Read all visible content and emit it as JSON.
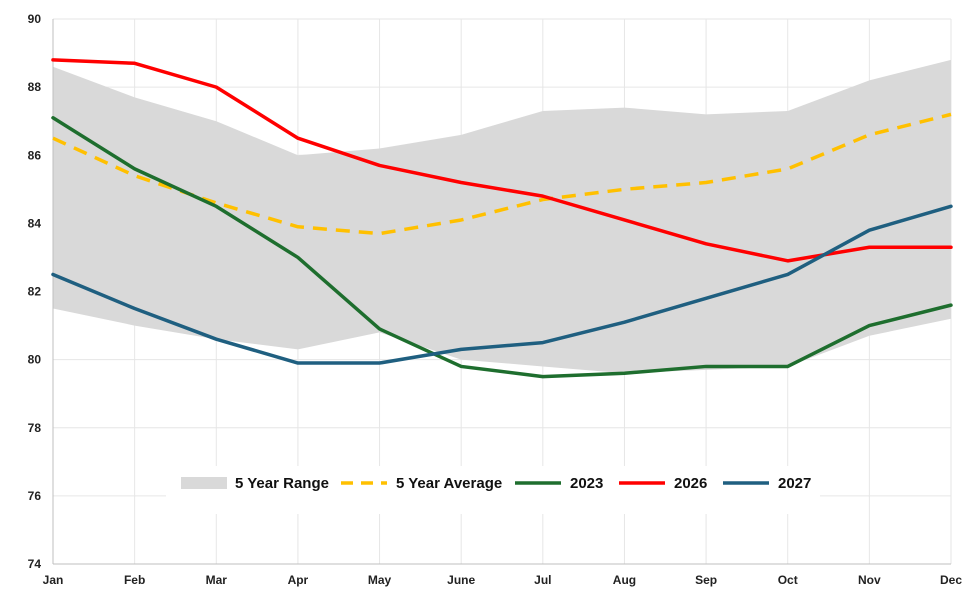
{
  "chart_data": {
    "type": "line",
    "title": "",
    "xlabel": "",
    "ylabel": "",
    "categories": [
      "Jan",
      "Feb",
      "Mar",
      "Apr",
      "May",
      "June",
      "Jul",
      "Aug",
      "Sep",
      "Oct",
      "Nov",
      "Dec"
    ],
    "ylim": [
      74,
      90
    ],
    "yticks": [
      "74",
      "76",
      "78",
      "80",
      "82",
      "84",
      "86",
      "88",
      "90"
    ],
    "grid": true,
    "legend_position": "bottom-center",
    "range": {
      "name": "5 Year Range",
      "color": "#d9d9d9",
      "upper": [
        88.6,
        87.7,
        87.0,
        86.0,
        86.2,
        86.6,
        87.3,
        87.4,
        87.2,
        87.3,
        88.2,
        88.8
      ],
      "lower": [
        81.5,
        81.0,
        80.6,
        80.3,
        80.8,
        80.0,
        79.8,
        79.6,
        79.7,
        79.8,
        80.7,
        81.2
      ]
    },
    "series": [
      {
        "name": "5 Year Average",
        "color": "#ffc000",
        "dashed": true,
        "values": [
          86.5,
          85.4,
          84.6,
          83.9,
          83.7,
          84.1,
          84.7,
          85.0,
          85.2,
          85.6,
          86.6,
          87.2
        ]
      },
      {
        "name": "2023",
        "color": "#1e6e2e",
        "dashed": false,
        "values": [
          87.1,
          85.6,
          84.5,
          83.0,
          80.9,
          79.8,
          79.5,
          79.6,
          79.8,
          79.8,
          81.0,
          81.6
        ]
      },
      {
        "name": "2026",
        "color": "#ff0000",
        "dashed": false,
        "values": [
          88.8,
          88.7,
          88.0,
          86.5,
          85.7,
          85.2,
          84.8,
          84.1,
          83.4,
          82.9,
          83.3,
          83.3
        ]
      },
      {
        "name": "2027",
        "color": "#1f5f80",
        "dashed": false,
        "values": [
          82.5,
          81.5,
          80.6,
          79.9,
          79.9,
          80.3,
          80.5,
          81.1,
          81.8,
          82.5,
          83.8,
          84.5
        ]
      }
    ]
  }
}
